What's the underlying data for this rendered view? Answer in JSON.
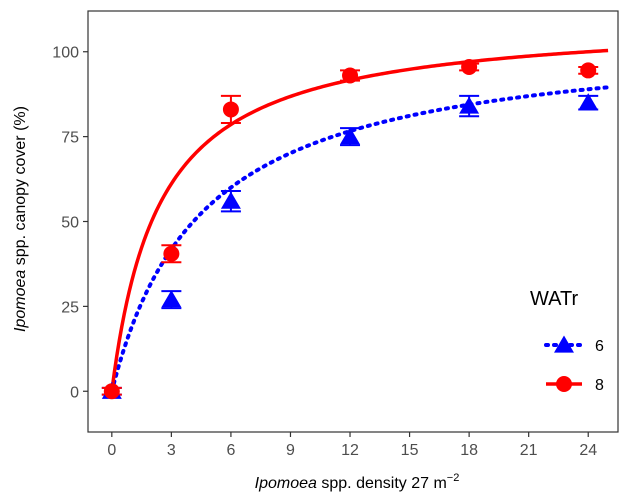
{
  "chart_data": {
    "type": "scatter",
    "xlabel": {
      "italic": "Ipomoea",
      "rest": " spp. density 27 m",
      "sup": "−2"
    },
    "ylabel": {
      "italic": "Ipomoea",
      "rest": " spp. canopy cover (%)"
    },
    "x_ticks": [
      0,
      3,
      6,
      9,
      12,
      15,
      18,
      21,
      24
    ],
    "y_ticks": [
      0,
      25,
      50,
      75,
      100
    ],
    "xlim": [
      -1.2,
      25.5
    ],
    "ylim": [
      -12,
      112
    ],
    "grid": false,
    "legend": {
      "title": "WATr",
      "placement": "bottom-right"
    },
    "series": [
      {
        "name": "6",
        "color": "#0000ff",
        "marker": "triangle",
        "line": "dotted",
        "x": [
          0,
          3,
          6,
          12,
          18,
          24
        ],
        "y": [
          0,
          27,
          56,
          75,
          84,
          85
        ],
        "err": [
          1,
          2.5,
          3,
          2.5,
          3,
          2
        ],
        "fit": {
          "type": "saturation",
          "a": 106,
          "b": 4.6
        }
      },
      {
        "name": "8",
        "color": "#ff0000",
        "marker": "circle",
        "line": "solid",
        "x": [
          0,
          3,
          6,
          12,
          18,
          24
        ],
        "y": [
          0,
          40.5,
          83,
          93,
          95.5,
          94.5
        ],
        "err": [
          1,
          2.5,
          4,
          1.5,
          1,
          1
        ],
        "fit": {
          "type": "saturation",
          "a": 110,
          "b": 2.4
        }
      }
    ]
  }
}
